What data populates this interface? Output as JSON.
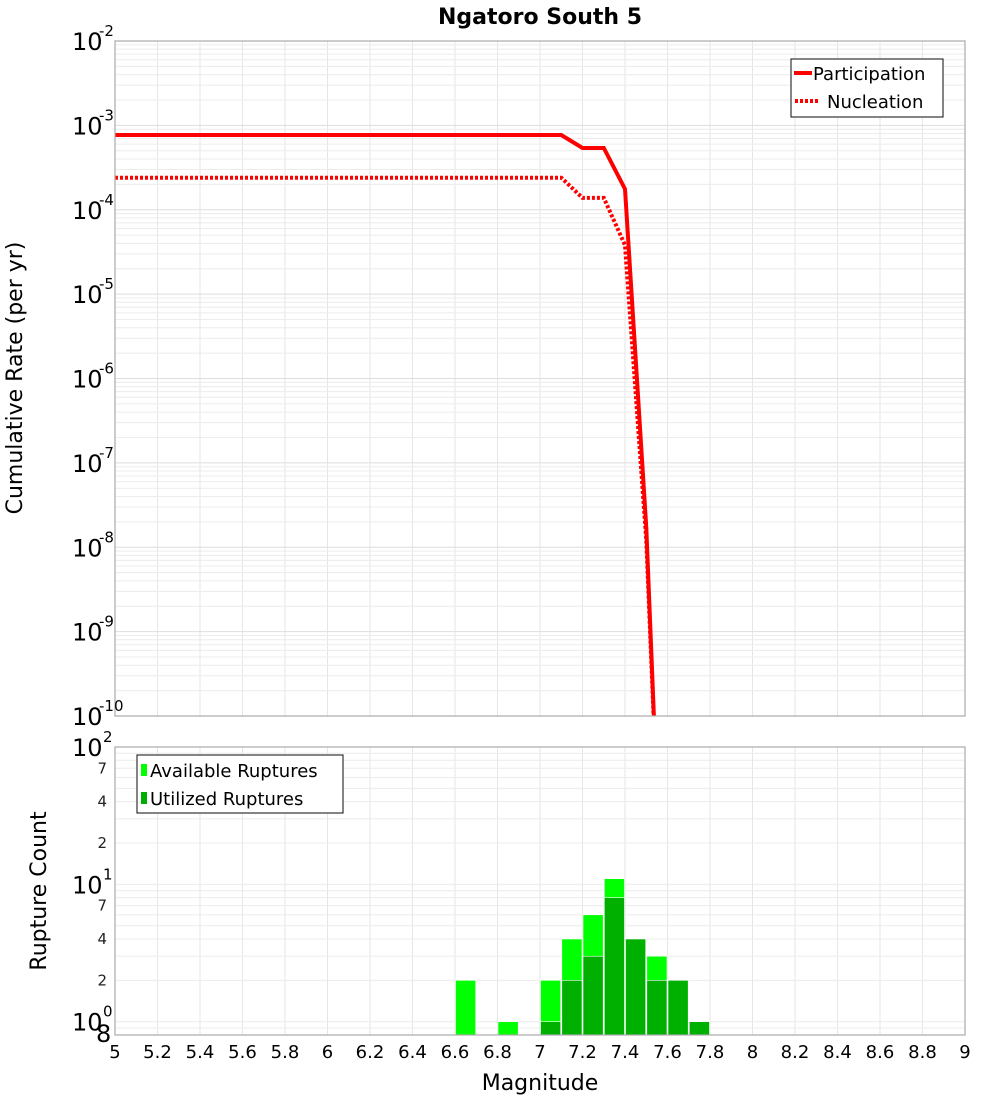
{
  "chart_data": [
    {
      "type": "line",
      "title": "Ngatoro South 5",
      "xlabel": "",
      "ylabel": "Cumulative Rate (per yr)",
      "xlim": [
        5,
        9
      ],
      "ylim": [
        1e-10,
        0.01
      ],
      "yscale": "log",
      "grid": true,
      "legend_position": "top-right",
      "y_tick_exponents": [
        -2,
        -3,
        -4,
        -5,
        -6,
        -7,
        -8,
        -9,
        -10
      ],
      "series": [
        {
          "name": "Participation",
          "style": "solid",
          "color": "#ff0000",
          "x": [
            5.0,
            5.1,
            5.2,
            5.3,
            5.4,
            5.5,
            5.6,
            5.7,
            5.8,
            5.9,
            6.0,
            6.1,
            6.2,
            6.3,
            6.4,
            6.5,
            6.6,
            6.7,
            6.8,
            6.9,
            7.0,
            7.1,
            7.2,
            7.3,
            7.4,
            7.5,
            7.6
          ],
          "values": [
            0.00077,
            0.00077,
            0.00077,
            0.00077,
            0.00077,
            0.00077,
            0.00077,
            0.00077,
            0.00077,
            0.00077,
            0.00077,
            0.00077,
            0.00077,
            0.00077,
            0.00077,
            0.00077,
            0.00077,
            0.00077,
            0.00077,
            0.00077,
            0.00077,
            0.00077,
            0.00054,
            0.00054,
            0.000176,
            1.7e-08,
            1e-14
          ]
        },
        {
          "name": "Nucleation",
          "style": "dotted",
          "color": "#ff0000",
          "x": [
            5.0,
            5.1,
            5.2,
            5.3,
            5.4,
            5.5,
            5.6,
            5.7,
            5.8,
            5.9,
            6.0,
            6.1,
            6.2,
            6.3,
            6.4,
            6.5,
            6.6,
            6.7,
            6.8,
            6.9,
            7.0,
            7.1,
            7.2,
            7.3,
            7.4,
            7.5,
            7.6
          ],
          "values": [
            0.00024,
            0.00024,
            0.00024,
            0.00024,
            0.00024,
            0.00024,
            0.00024,
            0.00024,
            0.00024,
            0.00024,
            0.00024,
            0.00024,
            0.00024,
            0.00024,
            0.00024,
            0.00024,
            0.00024,
            0.00024,
            0.00024,
            0.00024,
            0.00024,
            0.00024,
            0.000138,
            0.000138,
            3.8e-05,
            1.2e-08,
            1e-14
          ]
        }
      ]
    },
    {
      "type": "bar",
      "title": "",
      "xlabel": "Magnitude",
      "ylabel": "Rupture Count",
      "xlim": [
        5,
        9
      ],
      "ylim": [
        0.8,
        100
      ],
      "yscale": "log",
      "grid": true,
      "legend_position": "top-left",
      "x_ticks": [
        "5",
        "5.2",
        "5.4",
        "5.6",
        "5.8",
        "6",
        "6.2",
        "6.4",
        "6.6",
        "6.8",
        "7",
        "7.2",
        "7.4",
        "7.6",
        "7.8",
        "8",
        "8.2",
        "8.4",
        "8.6",
        "8.8",
        "9"
      ],
      "y_tick_major_exponents": [
        2,
        1,
        0
      ],
      "y_tick_minor_labels": [
        "7",
        "4",
        "2",
        "7",
        "4",
        "2",
        "8"
      ],
      "bin_width": 0.1,
      "series": [
        {
          "name": "Available Ruptures",
          "color": "#00ff00",
          "x": [
            6.6,
            6.8,
            7.0,
            7.1,
            7.2,
            7.3,
            7.4,
            7.5,
            7.6,
            7.7
          ],
          "values": [
            2,
            1,
            2,
            4,
            6,
            11,
            4,
            3,
            2,
            1
          ]
        },
        {
          "name": "Utilized Ruptures",
          "color": "#00b000",
          "x": [
            7.0,
            7.1,
            7.2,
            7.3,
            7.4,
            7.5,
            7.6,
            7.7
          ],
          "values": [
            1,
            2,
            3,
            8,
            4,
            2,
            2,
            1
          ]
        }
      ]
    }
  ],
  "top_chart": {
    "title": "Ngatoro South 5",
    "ylabel": "Cumulative Rate (per yr)",
    "legend": [
      {
        "label": "Participation"
      },
      {
        "label": "Nucleation"
      }
    ]
  },
  "bottom_chart": {
    "ylabel": "Rupture Count",
    "xlabel": "Magnitude",
    "legend": [
      {
        "label": "Available Ruptures"
      },
      {
        "label": "Utilized Ruptures"
      }
    ]
  }
}
